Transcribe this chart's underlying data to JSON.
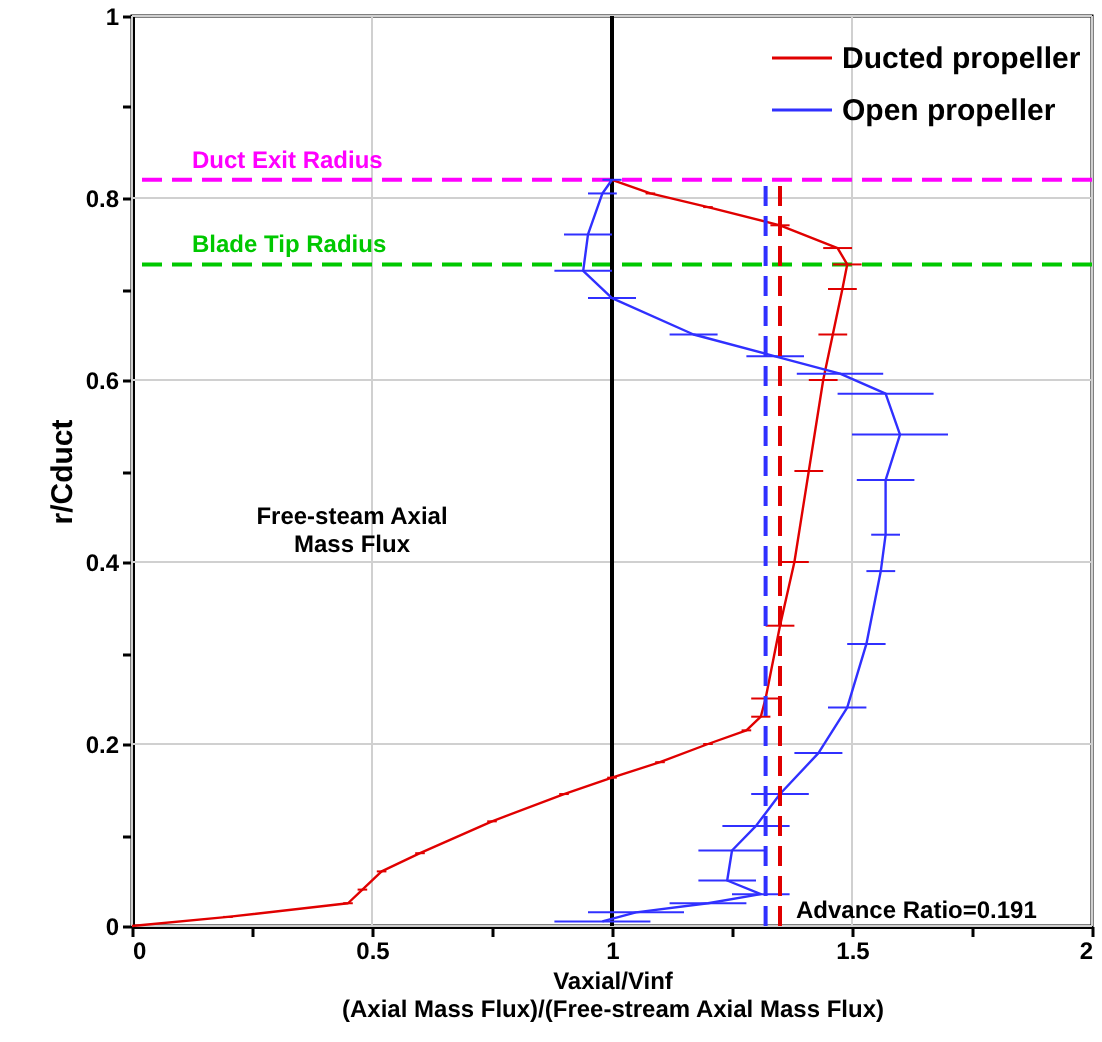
{
  "chart_data": {
    "type": "line",
    "xlabel": "Vaxial/Vinf\n(Axial Mass Flux)/(Free-stream Axial Mass Flux)",
    "ylabel": "r/Cduct",
    "xlim": [
      0,
      2
    ],
    "ylim": [
      0,
      1
    ],
    "xticks": [
      0,
      {
        "value": 0.25,
        "label": null
      },
      0.5,
      {
        "value": 0.75,
        "label": null
      },
      1,
      {
        "value": 1.25,
        "label": null
      },
      1.5,
      {
        "value": 1.75,
        "label": null
      },
      2
    ],
    "yticks": [
      0,
      {
        "value": 0.1,
        "label": null
      },
      0.2,
      {
        "value": 0.3,
        "label": null
      },
      0.4,
      {
        "value": 0.5,
        "label": null
      },
      0.6,
      {
        "value": 0.7,
        "label": null
      },
      0.8,
      {
        "value": 0.9,
        "label": null
      },
      1
    ],
    "grid": true,
    "legend": "top right",
    "marker": "none",
    "line_style": "solid",
    "series": [
      {
        "name": "Ducted propeller",
        "color": "#e00000",
        "x": [
          0,
          0.2,
          0.45,
          0.48,
          0.52,
          0.6,
          0.75,
          0.9,
          1.0,
          1.1,
          1.2,
          1.28,
          1.31,
          1.32,
          1.35,
          1.38,
          1.41,
          1.44,
          1.46,
          1.48,
          1.49,
          1.47,
          1.35,
          1.2,
          1.08,
          1.0
        ],
        "values": [
          0,
          0.01,
          0.025,
          0.04,
          0.06,
          0.08,
          0.115,
          0.145,
          0.163,
          0.18,
          0.2,
          0.215,
          0.23,
          0.25,
          0.33,
          0.4,
          0.5,
          0.6,
          0.65,
          0.7,
          0.727,
          0.745,
          0.77,
          0.79,
          0.805,
          0.82
        ],
        "xerrors": [
          null,
          0.01,
          0.01,
          0.01,
          0.01,
          0.01,
          0.01,
          0.01,
          0.01,
          0.01,
          0.01,
          0.01,
          0.02,
          0.03,
          0.03,
          0.03,
          0.03,
          0.03,
          0.03,
          0.03,
          0.03,
          0.03,
          0.02,
          0.01,
          0.01,
          null
        ]
      },
      {
        "name": "Open propeller",
        "color": "#3030ff",
        "x": [
          0.98,
          1.05,
          1.2,
          1.31,
          1.24,
          1.25,
          1.3,
          1.35,
          1.43,
          1.49,
          1.53,
          1.56,
          1.57,
          1.57,
          1.6,
          1.57,
          1.475,
          1.34,
          1.17,
          1.0,
          0.94,
          0.95,
          0.98,
          1.0
        ],
        "values": [
          0.005,
          0.015,
          0.025,
          0.035,
          0.05,
          0.083,
          0.11,
          0.145,
          0.19,
          0.24,
          0.31,
          0.39,
          0.43,
          0.49,
          0.54,
          0.585,
          0.607,
          0.626,
          0.65,
          0.69,
          0.72,
          0.76,
          0.805,
          0.82
        ],
        "xerrors": [
          0.1,
          0.1,
          0.08,
          0.06,
          0.06,
          0.07,
          0.07,
          0.06,
          0.05,
          0.04,
          0.04,
          0.03,
          0.03,
          0.06,
          0.1,
          0.1,
          0.09,
          0.06,
          0.05,
          0.05,
          0.06,
          0.05,
          0.03,
          0.02
        ]
      },
      {
        "color": "#3030ff",
        "line_style": "dashed",
        "x": [
          1.32,
          1.32
        ],
        "values": [
          0,
          0.82
        ]
      },
      {
        "color": "#e00000",
        "line_style": "dashed",
        "x": [
          1.35,
          1.35
        ],
        "values": [
          0,
          0.82
        ]
      }
    ],
    "ref_lines": [
      {
        "axis": "y",
        "value": 0.82,
        "label": "Duct Exit Radius",
        "color": "#ff00ff",
        "line_style": "dashed"
      },
      {
        "axis": "y",
        "value": 0.727,
        "label": "Blade Tip Radius",
        "color": "#00c800",
        "line_style": "dashed"
      },
      {
        "axis": "x",
        "value": 1.0,
        "color": "#000000",
        "line_style": "solid"
      }
    ],
    "annotations": [
      "Free-steam Axial\nMass Flux",
      "Advance Ratio=0.191"
    ]
  }
}
